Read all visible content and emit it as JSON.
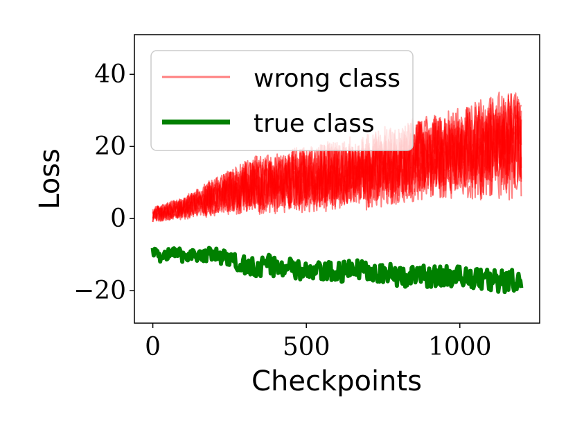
{
  "chart_data": {
    "type": "line",
    "title": "",
    "xlabel": "Checkpoints",
    "ylabel": "Loss",
    "xlim": [
      -60,
      1260
    ],
    "ylim": [
      -29,
      51
    ],
    "x_ticks": [
      0,
      500,
      1000
    ],
    "x_tick_labels": [
      "0",
      "500",
      "1000"
    ],
    "y_ticks": [
      -20,
      0,
      20,
      40
    ],
    "y_tick_labels": [
      "−20",
      "0",
      "20",
      "40"
    ],
    "grid": false,
    "legend_position": "top-left",
    "series": [
      {
        "name": "wrong class",
        "color": "#ff0000",
        "opacity": 0.5,
        "line_count": 9,
        "x": [
          0,
          100,
          200,
          300,
          400,
          500,
          600,
          700,
          800,
          900,
          1000,
          1100,
          1200
        ],
        "mean": [
          1,
          3,
          6,
          9,
          10,
          11,
          12,
          13,
          15,
          17,
          18,
          20,
          21
        ],
        "noise_range": [
          2,
          3,
          5,
          7,
          8,
          8,
          9,
          9,
          10,
          10,
          11,
          12,
          13
        ]
      },
      {
        "name": "true class",
        "color": "#008000",
        "opacity": 1.0,
        "x": [
          0,
          100,
          200,
          300,
          400,
          500,
          600,
          700,
          800,
          900,
          1000,
          1100,
          1200
        ],
        "mean": [
          -10,
          -10,
          -10,
          -13,
          -13,
          -15,
          -15,
          -14,
          -16,
          -16,
          -16,
          -17,
          -18
        ],
        "noise_range": [
          2,
          2,
          2,
          3,
          3,
          3,
          3,
          3,
          3,
          3,
          3,
          3,
          4
        ]
      }
    ]
  }
}
